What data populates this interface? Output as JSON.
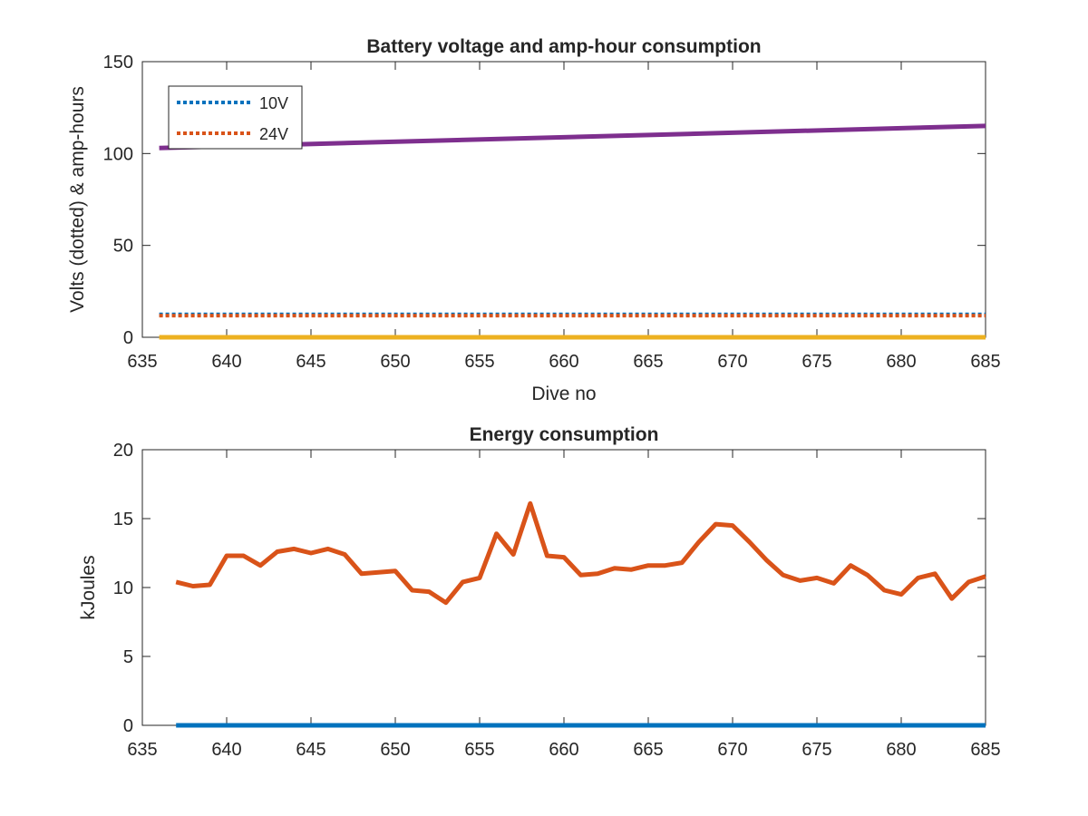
{
  "figure": {
    "background": "#ffffff"
  },
  "chart_data": [
    {
      "type": "line",
      "title": "Battery voltage and amp-hour consumption",
      "xlabel": "Dive no",
      "ylabel": "Volts (dotted) & amp-hours",
      "xlim": [
        635,
        685
      ],
      "ylim": [
        0,
        150
      ],
      "xticks": [
        635,
        640,
        645,
        650,
        655,
        660,
        665,
        670,
        675,
        680,
        685
      ],
      "yticks": [
        0,
        50,
        100,
        150
      ],
      "grid": false,
      "legend_position": "top-left",
      "series": [
        {
          "name": "10V",
          "style": "dotted",
          "color": "#0072BD",
          "x": [
            636,
            685
          ],
          "y": [
            12.5,
            12.5
          ]
        },
        {
          "name": "24V",
          "style": "dotted",
          "color": "#D95319",
          "x": [
            636,
            685
          ],
          "y": [
            11.8,
            11.8
          ]
        },
        {
          "style": "solid",
          "color": "#7E2F8E",
          "x": [
            636,
            685
          ],
          "y": [
            103,
            115
          ]
        },
        {
          "style": "solid",
          "color": "#EDB120",
          "x": [
            636,
            685
          ],
          "y": [
            0,
            0
          ]
        }
      ]
    },
    {
      "type": "line",
      "title": "Energy consumption",
      "xlabel": "",
      "ylabel": "kJoules",
      "xlim": [
        635,
        685
      ],
      "ylim": [
        0,
        20
      ],
      "xticks": [
        635,
        640,
        645,
        650,
        655,
        660,
        665,
        670,
        675,
        680,
        685
      ],
      "yticks": [
        0,
        5,
        10,
        15,
        20
      ],
      "grid": false,
      "series": [
        {
          "style": "solid",
          "color": "#0072BD",
          "x": [
            637,
            685
          ],
          "y": [
            0,
            0
          ]
        },
        {
          "style": "solid",
          "color": "#D95319",
          "x": [
            637,
            638,
            639,
            640,
            641,
            642,
            643,
            644,
            645,
            646,
            647,
            648,
            649,
            650,
            651,
            652,
            653,
            654,
            655,
            656,
            657,
            658,
            659,
            660,
            661,
            662,
            663,
            664,
            665,
            666,
            667,
            668,
            669,
            670,
            671,
            672,
            673,
            674,
            675,
            676,
            677,
            678,
            679,
            680,
            681,
            682,
            683,
            684,
            685
          ],
          "y": [
            10.4,
            10.1,
            10.2,
            12.3,
            12.3,
            11.6,
            12.6,
            12.8,
            12.5,
            12.8,
            12.4,
            11.0,
            11.1,
            11.2,
            9.8,
            9.7,
            8.9,
            10.4,
            10.7,
            13.9,
            12.4,
            16.1,
            12.3,
            12.2,
            10.9,
            11.0,
            11.4,
            11.3,
            11.6,
            11.6,
            11.8,
            13.3,
            14.6,
            14.5,
            13.3,
            12.0,
            10.9,
            10.5,
            10.7,
            10.3,
            11.6,
            10.9,
            9.8,
            9.5,
            10.7,
            11.0,
            9.2,
            10.4,
            10.8
          ]
        }
      ]
    }
  ]
}
